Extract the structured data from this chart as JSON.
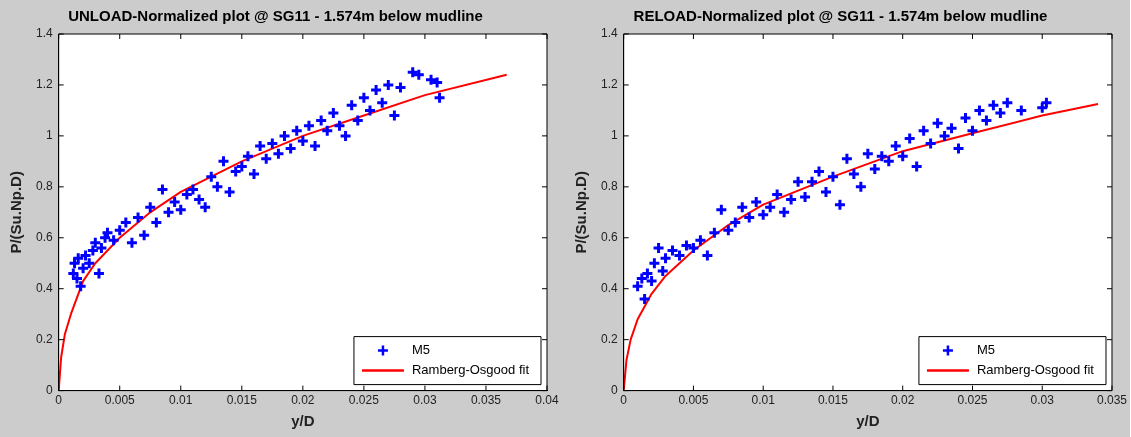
{
  "chart_data": [
    {
      "type": "scatter",
      "title": "UNLOAD-Normalized plot @ SG11 - 1.574m below mudline",
      "xlabel": "y/D",
      "ylabel": "P/(Su.Np.D)",
      "xlim": [
        0,
        0.04
      ],
      "ylim": [
        0,
        1.4
      ],
      "xticks": [
        0,
        0.005,
        0.01,
        0.015,
        0.02,
        0.025,
        0.03,
        0.035,
        0.04
      ],
      "yticks": [
        0,
        0.2,
        0.4,
        0.6,
        0.8,
        1,
        1.2,
        1.4
      ],
      "grid": false,
      "legend": "bottom right",
      "marker": "cross",
      "series": [
        {
          "name": "M5",
          "color": "#0000ff",
          "x": [
            0.0012,
            0.0013,
            0.0015,
            0.0016,
            0.0018,
            0.002,
            0.0022,
            0.0025,
            0.0028,
            0.003,
            0.0033,
            0.0035,
            0.0038,
            0.004,
            0.0045,
            0.005,
            0.0055,
            0.006,
            0.0065,
            0.007,
            0.0075,
            0.008,
            0.0085,
            0.009,
            0.0095,
            0.01,
            0.0105,
            0.011,
            0.0115,
            0.012,
            0.0125,
            0.013,
            0.0135,
            0.014,
            0.0145,
            0.015,
            0.0155,
            0.016,
            0.0165,
            0.017,
            0.0175,
            0.018,
            0.0185,
            0.019,
            0.0195,
            0.02,
            0.0205,
            0.021,
            0.0215,
            0.022,
            0.0225,
            0.023,
            0.0235,
            0.024,
            0.0245,
            0.025,
            0.0255,
            0.026,
            0.0265,
            0.027,
            0.0275,
            0.028,
            0.029,
            0.0295,
            0.0305,
            0.031,
            0.0312
          ],
          "values": [
            0.46,
            0.5,
            0.44,
            0.52,
            0.41,
            0.48,
            0.53,
            0.5,
            0.55,
            0.58,
            0.46,
            0.56,
            0.6,
            0.62,
            0.59,
            0.63,
            0.66,
            0.58,
            0.68,
            0.61,
            0.72,
            0.66,
            0.79,
            0.7,
            0.74,
            0.71,
            0.77,
            0.79,
            0.75,
            0.72,
            0.84,
            0.8,
            0.9,
            0.78,
            0.86,
            0.88,
            0.92,
            0.85,
            0.96,
            0.91,
            0.97,
            0.93,
            1.0,
            0.95,
            1.02,
            0.98,
            1.04,
            0.96,
            1.06,
            1.02,
            1.09,
            1.04,
            1.0,
            1.12,
            1.06,
            1.15,
            1.1,
            1.18,
            1.13,
            1.2,
            1.08,
            1.19,
            1.25,
            1.24,
            1.22,
            1.21,
            1.15
          ]
        },
        {
          "name": "Ramberg-Osgood fit",
          "type": "line",
          "color": "#ff0000",
          "marker": "none",
          "x": [
            0,
            0.0002,
            0.0005,
            0.001,
            0.002,
            0.003,
            0.005,
            0.0075,
            0.01,
            0.015,
            0.02,
            0.025,
            0.03,
            0.0367
          ],
          "values": [
            0,
            0.13,
            0.22,
            0.3,
            0.43,
            0.5,
            0.6,
            0.7,
            0.78,
            0.9,
            1.0,
            1.08,
            1.16,
            1.24
          ]
        }
      ]
    },
    {
      "type": "scatter",
      "title": "RELOAD-Normalized plot @ SG11 - 1.574m below mudline",
      "xlabel": "y/D",
      "ylabel": "P/(Su.Np.D)",
      "xlim": [
        0,
        0.035
      ],
      "ylim": [
        0,
        1.4
      ],
      "xticks": [
        0,
        0.005,
        0.01,
        0.015,
        0.02,
        0.025,
        0.03,
        0.035
      ],
      "yticks": [
        0,
        0.2,
        0.4,
        0.6,
        0.8,
        1,
        1.2,
        1.4
      ],
      "grid": false,
      "legend": "bottom right",
      "marker": "cross",
      "series": [
        {
          "name": "M5",
          "color": "#0000ff",
          "x": [
            0.001,
            0.0013,
            0.0015,
            0.0017,
            0.002,
            0.0022,
            0.0025,
            0.0028,
            0.003,
            0.0035,
            0.004,
            0.0045,
            0.005,
            0.0055,
            0.006,
            0.0065,
            0.007,
            0.0075,
            0.008,
            0.0085,
            0.009,
            0.0095,
            0.01,
            0.0105,
            0.011,
            0.0115,
            0.012,
            0.0125,
            0.013,
            0.0135,
            0.014,
            0.0145,
            0.015,
            0.0155,
            0.016,
            0.0165,
            0.017,
            0.0175,
            0.018,
            0.0185,
            0.019,
            0.0195,
            0.02,
            0.0205,
            0.021,
            0.0215,
            0.022,
            0.0225,
            0.023,
            0.0235,
            0.024,
            0.0245,
            0.025,
            0.0255,
            0.026,
            0.0265,
            0.027,
            0.0275,
            0.0285,
            0.03,
            0.0303
          ],
          "values": [
            0.41,
            0.44,
            0.36,
            0.46,
            0.43,
            0.5,
            0.56,
            0.47,
            0.52,
            0.55,
            0.53,
            0.57,
            0.56,
            0.59,
            0.53,
            0.62,
            0.71,
            0.63,
            0.66,
            0.72,
            0.68,
            0.74,
            0.69,
            0.72,
            0.77,
            0.7,
            0.75,
            0.82,
            0.76,
            0.82,
            0.86,
            0.78,
            0.84,
            0.73,
            0.91,
            0.85,
            0.8,
            0.93,
            0.87,
            0.92,
            0.9,
            0.96,
            0.92,
            0.99,
            0.88,
            1.02,
            0.97,
            1.05,
            1.0,
            1.03,
            0.95,
            1.07,
            1.02,
            1.1,
            1.06,
            1.12,
            1.09,
            1.13,
            1.1,
            1.11,
            1.13
          ]
        },
        {
          "name": "Ramberg-Osgood fit",
          "type": "line",
          "color": "#ff0000",
          "marker": "none",
          "x": [
            0,
            0.0002,
            0.0005,
            0.001,
            0.002,
            0.003,
            0.005,
            0.0075,
            0.01,
            0.015,
            0.02,
            0.025,
            0.03,
            0.034
          ],
          "values": [
            0,
            0.12,
            0.2,
            0.28,
            0.38,
            0.45,
            0.55,
            0.65,
            0.73,
            0.84,
            0.94,
            1.01,
            1.08,
            1.125
          ]
        }
      ]
    }
  ]
}
